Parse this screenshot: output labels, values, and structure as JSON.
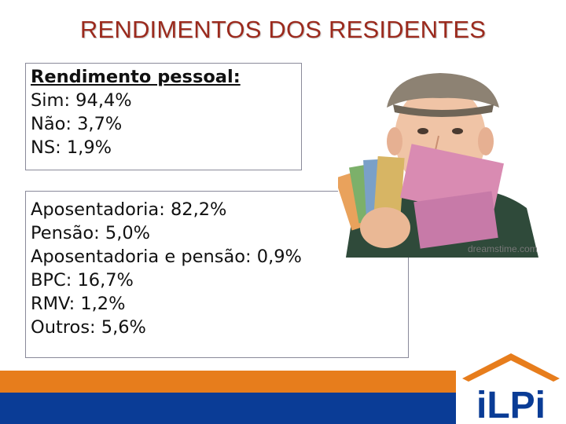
{
  "slide": {
    "title": "RENDIMENTOS DOS RESIDENTES"
  },
  "personal_income": {
    "heading": "Rendimento pessoal:",
    "items": [
      "Sim: 94,4%",
      "Não: 3,7%",
      "NS: 1,9%"
    ]
  },
  "income_sources": {
    "items": [
      "Aposentadoria: 82,2%",
      "Pensão: 5,0%",
      "Aposentadoria e pensão: 0,9%",
      "BPC: 16,7%",
      "RMV: 1,2%",
      "Outros: 5,6%"
    ]
  },
  "photo": {
    "watermark": "dreamstime.com"
  },
  "logo": {
    "text": "iLPi"
  },
  "colors": {
    "title": "#9b2a1d",
    "orange_band": "#e77d1c",
    "blue_band": "#0a3c96",
    "logo_roof": "#e77d1c",
    "logo_text": "#0a3c96"
  }
}
